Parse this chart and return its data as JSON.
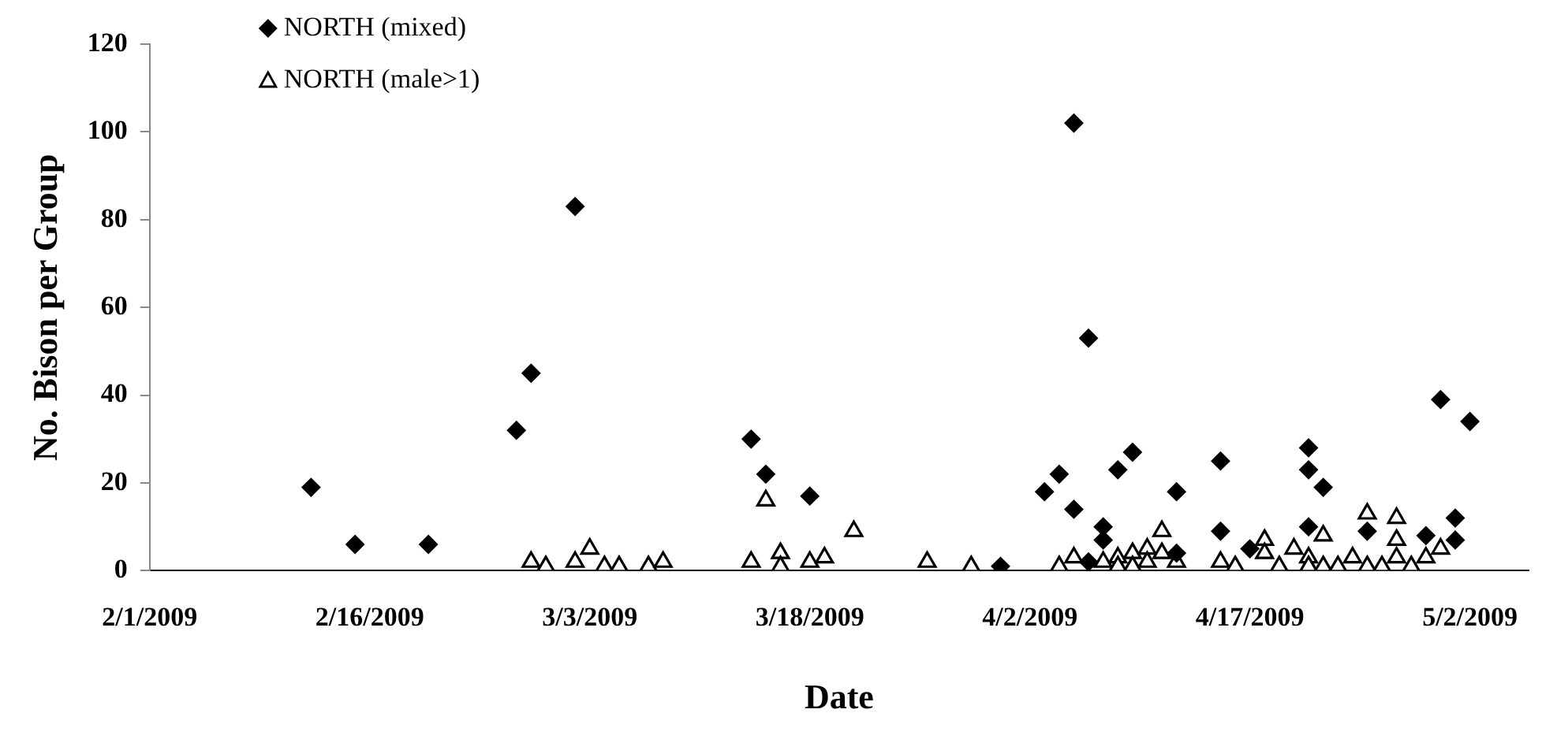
{
  "chart_data": {
    "type": "scatter",
    "xlabel": "Date",
    "ylabel": "No. Bison per Group",
    "xlim": [
      "2009-02-01",
      "2009-05-06"
    ],
    "xticks": [
      {
        "value": "2009-02-01",
        "label": "2/1/2009"
      },
      {
        "value": "2009-02-16",
        "label": "2/16/2009"
      },
      {
        "value": "2009-03-03",
        "label": "3/3/2009"
      },
      {
        "value": "2009-03-18",
        "label": "3/18/2009"
      },
      {
        "value": "2009-04-02",
        "label": "4/2/2009"
      },
      {
        "value": "2009-04-17",
        "label": "4/17/2009"
      },
      {
        "value": "2009-05-02",
        "label": "5/2/2009"
      }
    ],
    "ylim": [
      0,
      120
    ],
    "yticks": [
      0,
      20,
      40,
      60,
      80,
      100,
      120
    ],
    "grid": false,
    "legend": "top left",
    "series": [
      {
        "name": "NORTH (mixed)",
        "color": "#000000",
        "marker": "diamond",
        "x": [
          "2009-02-12",
          "2009-02-15",
          "2009-02-20",
          "2009-02-26",
          "2009-02-27",
          "2009-03-02",
          "2009-03-14",
          "2009-03-15",
          "2009-03-18",
          "2009-03-31",
          "2009-04-03",
          "2009-04-04",
          "2009-04-05",
          "2009-04-05",
          "2009-04-06",
          "2009-04-06",
          "2009-04-07",
          "2009-04-07",
          "2009-04-08",
          "2009-04-09",
          "2009-04-12",
          "2009-04-12",
          "2009-04-15",
          "2009-04-15",
          "2009-04-17",
          "2009-04-21",
          "2009-04-21",
          "2009-04-21",
          "2009-04-22",
          "2009-04-25",
          "2009-04-29",
          "2009-04-30",
          "2009-05-01",
          "2009-05-01",
          "2009-05-02"
        ],
        "values": [
          19,
          6,
          6,
          32,
          45,
          83,
          30,
          22,
          17,
          1,
          18,
          22,
          102,
          14,
          53,
          2,
          10,
          7,
          23,
          27,
          18,
          4,
          25,
          9,
          5,
          28,
          23,
          10,
          19,
          9,
          8,
          39,
          12,
          7,
          34
        ]
      },
      {
        "name": "NORTH (male>1)",
        "color": "#000000",
        "marker": "triangle",
        "x": [
          "2009-02-27",
          "2009-02-28",
          "2009-03-02",
          "2009-03-03",
          "2009-03-04",
          "2009-03-05",
          "2009-03-07",
          "2009-03-08",
          "2009-03-14",
          "2009-03-15",
          "2009-03-16",
          "2009-03-16",
          "2009-03-18",
          "2009-03-19",
          "2009-03-21",
          "2009-03-26",
          "2009-03-29",
          "2009-04-04",
          "2009-04-05",
          "2009-04-07",
          "2009-04-08",
          "2009-04-08",
          "2009-04-09",
          "2009-04-09",
          "2009-04-10",
          "2009-04-10",
          "2009-04-11",
          "2009-04-11",
          "2009-04-12",
          "2009-04-15",
          "2009-04-16",
          "2009-04-18",
          "2009-04-18",
          "2009-04-19",
          "2009-04-20",
          "2009-04-21",
          "2009-04-21",
          "2009-04-22",
          "2009-04-22",
          "2009-04-23",
          "2009-04-24",
          "2009-04-25",
          "2009-04-25",
          "2009-04-26",
          "2009-04-27",
          "2009-04-27",
          "2009-04-27",
          "2009-04-28",
          "2009-04-29",
          "2009-04-30"
        ],
        "values": [
          2,
          1,
          2,
          5,
          1,
          1,
          1,
          2,
          2,
          16,
          4,
          1,
          2,
          3,
          9,
          2,
          1,
          1,
          3,
          2,
          3,
          1,
          4,
          1,
          5,
          2,
          9,
          4,
          2,
          2,
          1,
          7,
          4,
          1,
          5,
          3,
          1,
          8,
          1,
          1,
          3,
          13,
          1,
          1,
          12,
          7,
          3,
          1,
          3,
          5
        ]
      }
    ]
  }
}
